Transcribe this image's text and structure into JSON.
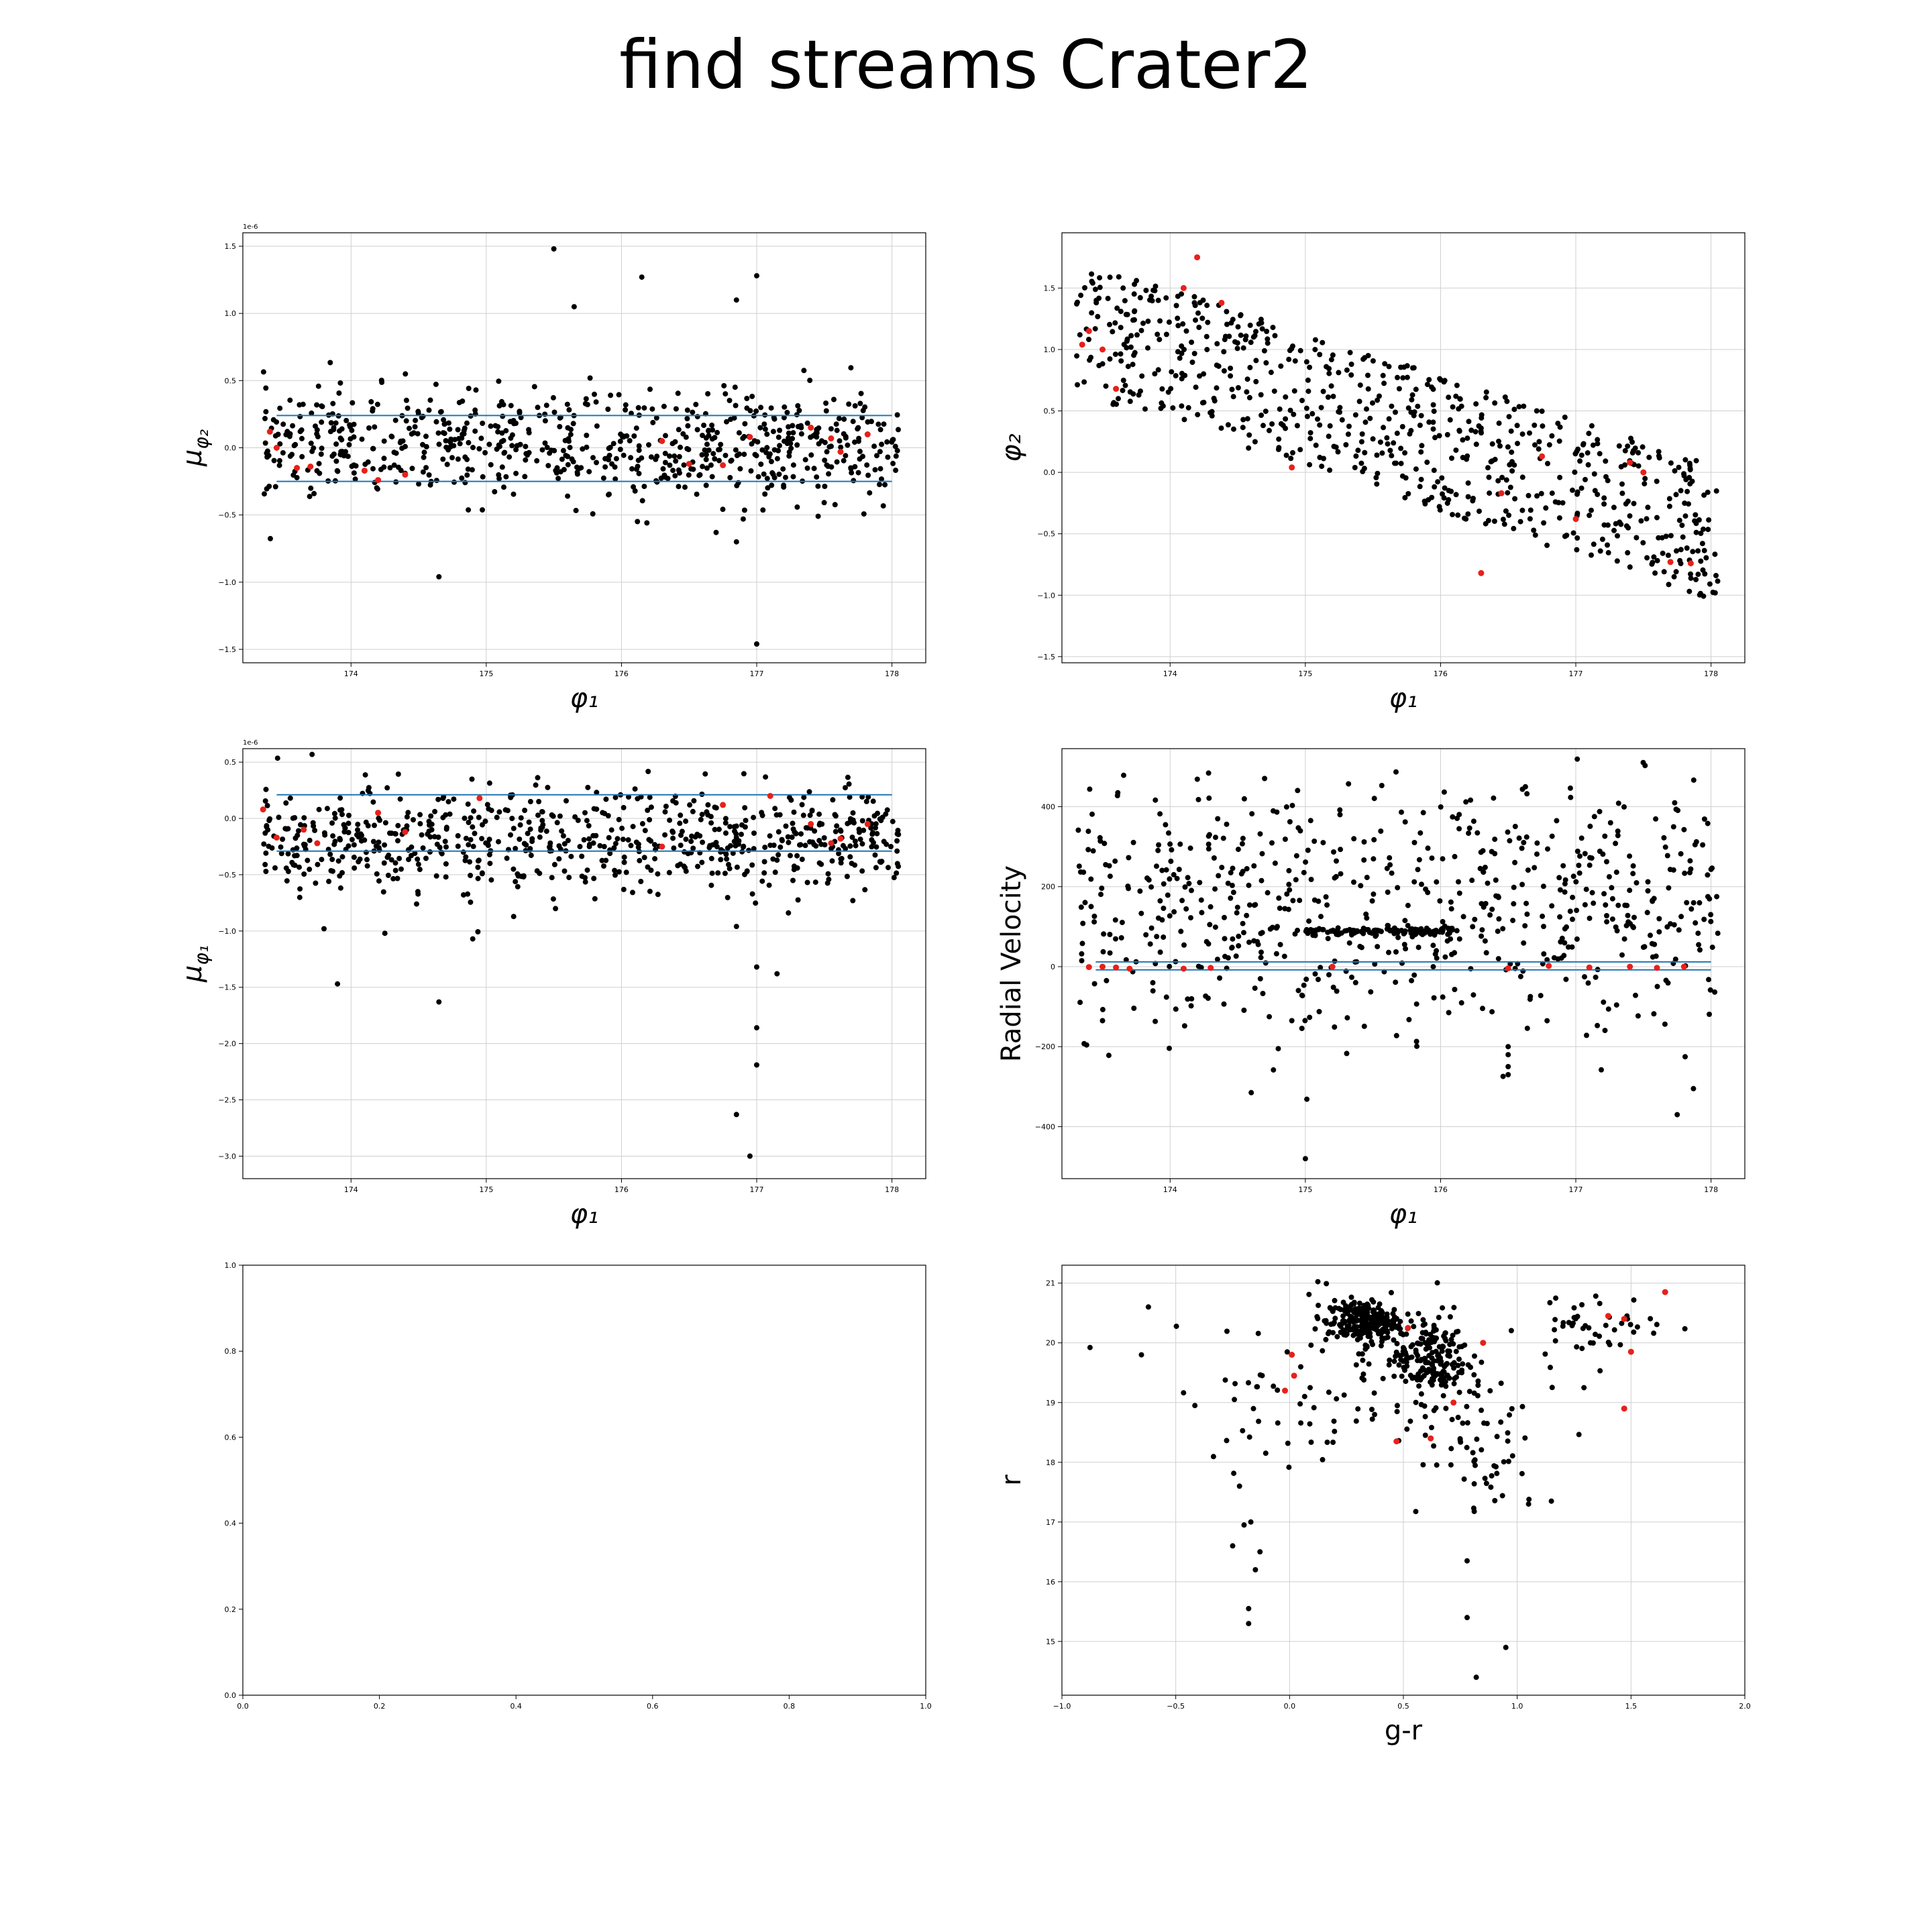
{
  "title": "find streams Crater2",
  "colors": {
    "points": "#000000",
    "highlight": "#e8201a",
    "band": "#1f77b4",
    "grid": "#cfcfcf",
    "frame": "#000000"
  },
  "chart_data": [
    {
      "id": "pmphi2",
      "type": "scatter",
      "xlabel": "φ₁",
      "ylabel": "μ_{φ₂}",
      "y_offset_label": "1e-6",
      "xlim": [
        173.2,
        178.25
      ],
      "ylim": [
        -1.6,
        1.6
      ],
      "xticks": [
        174,
        175,
        176,
        177,
        178
      ],
      "yticks": [
        -1.5,
        -1.0,
        -0.5,
        0.0,
        0.5,
        1.0,
        1.5
      ],
      "grid": true,
      "hlines": [
        0.24,
        -0.25
      ],
      "hline_xrange": [
        173.45,
        178.0
      ],
      "scatter": {
        "x_range": [
          173.35,
          178.05
        ],
        "y_center": 0.02,
        "y_spread": 0.2,
        "n": 700,
        "outliers": [
          [
            175.5,
            1.48
          ],
          [
            177.0,
            1.28
          ],
          [
            176.15,
            1.27
          ],
          [
            176.85,
            1.1
          ],
          [
            175.65,
            1.05
          ],
          [
            174.65,
            -0.96
          ],
          [
            177.0,
            -1.46
          ],
          [
            176.85,
            -0.7
          ],
          [
            176.7,
            -0.63
          ],
          [
            176.9,
            -0.53
          ]
        ]
      },
      "highlighted": [
        [
          173.4,
          0.12
        ],
        [
          173.45,
          0.0
        ],
        [
          173.6,
          -0.15
        ],
        [
          173.7,
          -0.14
        ],
        [
          174.1,
          -0.17
        ],
        [
          174.2,
          -0.24
        ],
        [
          174.4,
          -0.2
        ],
        [
          176.3,
          0.05
        ],
        [
          176.5,
          -0.12
        ],
        [
          176.75,
          -0.13
        ],
        [
          176.95,
          0.08
        ],
        [
          177.4,
          0.15
        ],
        [
          177.55,
          0.07
        ],
        [
          177.62,
          -0.03
        ],
        [
          177.82,
          0.1
        ]
      ]
    },
    {
      "id": "phi2",
      "type": "scatter",
      "xlabel": "φ₁",
      "ylabel": "φ₂",
      "xlim": [
        173.2,
        178.25
      ],
      "ylim": [
        -1.55,
        1.95
      ],
      "xticks": [
        174,
        175,
        176,
        177,
        178
      ],
      "yticks": [
        -1.5,
        -1.0,
        -0.5,
        0.0,
        0.5,
        1.0,
        1.5
      ],
      "grid": true,
      "hlines": [],
      "scatter": {
        "x_range": [
          173.3,
          178.05
        ],
        "trend": [
          1.2,
          -0.5
        ],
        "y_spread": 0.55,
        "n": 700,
        "outliers": []
      },
      "highlighted": [
        [
          173.35,
          1.04
        ],
        [
          173.4,
          1.15
        ],
        [
          173.5,
          1.0
        ],
        [
          173.6,
          0.68
        ],
        [
          174.1,
          1.5
        ],
        [
          174.2,
          1.75
        ],
        [
          174.38,
          1.38
        ],
        [
          174.9,
          0.04
        ],
        [
          176.3,
          -0.82
        ],
        [
          176.45,
          -0.17
        ],
        [
          176.75,
          0.13
        ],
        [
          177.0,
          -0.38
        ],
        [
          177.4,
          0.08
        ],
        [
          177.5,
          0.0
        ],
        [
          177.7,
          -0.73
        ],
        [
          177.85,
          -0.74
        ]
      ]
    },
    {
      "id": "pmphi1",
      "type": "scatter",
      "xlabel": "φ₁",
      "ylabel": "μ_{φ₁}",
      "y_offset_label": "1e-6",
      "xlim": [
        173.2,
        178.25
      ],
      "ylim": [
        -3.2,
        0.62
      ],
      "xticks": [
        174,
        175,
        176,
        177,
        178
      ],
      "yticks": [
        -3.0,
        -2.5,
        -2.0,
        -1.5,
        -1.0,
        -0.5,
        0.0,
        0.5
      ],
      "grid": true,
      "hlines": [
        0.21,
        -0.29
      ],
      "hline_xrange": [
        173.45,
        178.0
      ],
      "scatter": {
        "x_range": [
          173.35,
          178.05
        ],
        "y_center": -0.18,
        "y_spread": 0.22,
        "n": 700,
        "outliers": [
          [
            173.9,
            -1.47
          ],
          [
            174.65,
            -1.63
          ],
          [
            176.85,
            -2.63
          ],
          [
            176.95,
            -3.0
          ],
          [
            177.0,
            -2.19
          ],
          [
            177.0,
            -1.86
          ],
          [
            177.15,
            -1.38
          ],
          [
            176.85,
            -0.96
          ],
          [
            177.0,
            -1.32
          ],
          [
            173.8,
            -0.98
          ],
          [
            174.25,
            -1.02
          ],
          [
            174.9,
            -1.07
          ]
        ]
      },
      "highlighted": [
        [
          173.35,
          0.08
        ],
        [
          173.45,
          -0.17
        ],
        [
          173.65,
          -0.1
        ],
        [
          173.75,
          -0.22
        ],
        [
          174.2,
          0.05
        ],
        [
          174.4,
          -0.12
        ],
        [
          174.95,
          0.18
        ],
        [
          176.3,
          -0.25
        ],
        [
          176.75,
          0.12
        ],
        [
          177.1,
          0.2
        ],
        [
          177.4,
          -0.05
        ],
        [
          177.55,
          -0.22
        ],
        [
          177.62,
          -0.18
        ],
        [
          177.82,
          -0.05
        ]
      ]
    },
    {
      "id": "rv",
      "type": "scatter",
      "xlabel": "φ₁",
      "ylabel": "Radial Velocity",
      "xlim": [
        173.2,
        178.25
      ],
      "ylim": [
        -530,
        545
      ],
      "xticks": [
        174,
        175,
        176,
        177,
        178
      ],
      "yticks": [
        -400,
        -200,
        0,
        200,
        400
      ],
      "grid": true,
      "hlines": [
        12,
        -8
      ],
      "hline_xrange": [
        173.45,
        178.0
      ],
      "scatter": {
        "x_range": [
          173.3,
          178.05
        ],
        "y_center": 150,
        "y_spread": 160,
        "n": 650,
        "cluster": {
          "x_range": [
            175.0,
            176.1
          ],
          "y": 88,
          "y_spread": 5,
          "n": 130
        },
        "outliers": [
          [
            175.0,
            -480
          ],
          [
            174.6,
            -315
          ],
          [
            177.75,
            -370
          ],
          [
            177.87,
            -305
          ],
          [
            176.5,
            -270
          ],
          [
            176.5,
            -250
          ],
          [
            176.5,
            -220
          ],
          [
            176.5,
            -200
          ],
          [
            174.9,
            -135
          ],
          [
            174.8,
            -205
          ],
          [
            173.5,
            -135
          ]
        ]
      },
      "highlighted": [
        [
          173.4,
          -1
        ],
        [
          173.5,
          0
        ],
        [
          173.6,
          -2
        ],
        [
          173.7,
          -5
        ],
        [
          174.1,
          -5
        ],
        [
          174.3,
          -3
        ],
        [
          175.2,
          0
        ],
        [
          176.5,
          -4
        ],
        [
          176.8,
          2
        ],
        [
          177.1,
          -2
        ],
        [
          177.4,
          0
        ],
        [
          177.6,
          -3
        ],
        [
          177.8,
          0
        ]
      ]
    },
    {
      "id": "empty",
      "type": "scatter",
      "xlabel": "",
      "ylabel": "",
      "xlim": [
        0.0,
        1.0
      ],
      "ylim": [
        0.0,
        1.0
      ],
      "xticks": [
        0.0,
        0.2,
        0.4,
        0.6,
        0.8,
        1.0
      ],
      "yticks": [
        0.0,
        0.2,
        0.4,
        0.6,
        0.8,
        1.0
      ],
      "grid": false,
      "hlines": [],
      "highlighted": []
    },
    {
      "id": "cmd",
      "type": "scatter",
      "xlabel": "g-r",
      "ylabel": "r",
      "xlim": [
        -1.0,
        2.0
      ],
      "ylim": [
        14.1,
        21.3
      ],
      "xticks": [
        -1.0,
        -0.5,
        0.0,
        0.5,
        1.0,
        1.5,
        2.0
      ],
      "yticks": [
        15,
        16,
        17,
        18,
        19,
        20,
        21
      ],
      "grid": true,
      "hlines": [],
      "scatter": {
        "clumps": [
          {
            "x": 0.32,
            "y": 20.35,
            "sx": 0.08,
            "sy": 0.18,
            "n": 230
          },
          {
            "x": 0.62,
            "y": 19.75,
            "sx": 0.08,
            "sy": 0.35,
            "n": 170
          },
          {
            "x": 0.85,
            "y": 18.2,
            "sx": 0.12,
            "sy": 0.5,
            "n": 45
          },
          {
            "x": 1.35,
            "y": 20.3,
            "sx": 0.15,
            "sy": 0.25,
            "n": 45
          },
          {
            "x": 0.3,
            "y": 19.3,
            "sx": 0.4,
            "sy": 0.7,
            "n": 120
          }
        ],
        "outliers": [
          [
            -0.62,
            20.6
          ],
          [
            -0.25,
            16.6
          ],
          [
            -0.22,
            17.6
          ],
          [
            -0.2,
            16.95
          ],
          [
            -0.18,
            15.55
          ],
          [
            -0.18,
            15.3
          ],
          [
            -0.17,
            17.0
          ],
          [
            -0.15,
            16.2
          ],
          [
            -0.13,
            16.5
          ],
          [
            0.82,
            14.4
          ],
          [
            0.95,
            14.9
          ],
          [
            0.78,
            15.4
          ],
          [
            0.78,
            16.35
          ],
          [
            1.05,
            17.3
          ],
          [
            1.15,
            17.35
          ]
        ]
      },
      "highlighted": [
        [
          -0.02,
          19.2
        ],
        [
          0.01,
          19.8
        ],
        [
          0.02,
          19.45
        ],
        [
          0.47,
          18.35
        ],
        [
          0.52,
          20.25
        ],
        [
          0.62,
          18.4
        ],
        [
          0.72,
          19.0
        ],
        [
          0.85,
          20.0
        ],
        [
          1.4,
          20.45
        ],
        [
          1.47,
          20.4
        ],
        [
          1.5,
          19.85
        ],
        [
          1.47,
          18.9
        ],
        [
          1.65,
          20.85
        ]
      ]
    }
  ]
}
